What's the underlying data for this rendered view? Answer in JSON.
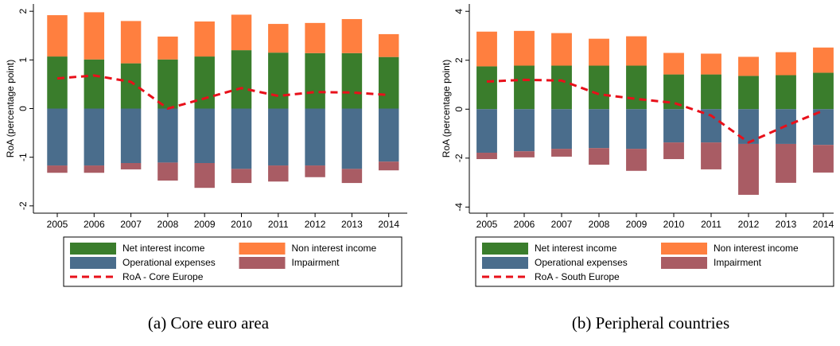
{
  "chart_data": [
    {
      "type": "bar",
      "stacked": true,
      "caption": "(a) Core euro area",
      "y_label": "RoA (percentage point)",
      "categories": [
        "2005",
        "2006",
        "2007",
        "2008",
        "2009",
        "2010",
        "2011",
        "2012",
        "2013",
        "2014"
      ],
      "ylim": [
        -2.15,
        2.15
      ],
      "yticks": [
        -2,
        -1,
        0,
        1,
        2
      ],
      "series": [
        {
          "name": "Net interest income",
          "color": "#3a7d2c",
          "values": [
            1.07,
            1.01,
            0.93,
            1.01,
            1.07,
            1.2,
            1.15,
            1.14,
            1.14,
            1.06
          ]
        },
        {
          "name": "Non interest income",
          "color": "#ff7f3f",
          "values": [
            0.85,
            0.97,
            0.87,
            0.47,
            0.72,
            0.73,
            0.59,
            0.62,
            0.7,
            0.47
          ]
        },
        {
          "name": "Operational expenses",
          "color": "#4a6d8c",
          "values": [
            -1.17,
            -1.17,
            -1.12,
            -1.11,
            -1.12,
            -1.24,
            -1.17,
            -1.17,
            -1.24,
            -1.09
          ]
        },
        {
          "name": "Impairment",
          "color": "#a95c64",
          "values": [
            -0.15,
            -0.15,
            -0.13,
            -0.37,
            -0.51,
            -0.29,
            -0.33,
            -0.24,
            -0.29,
            -0.18
          ]
        },
        {
          "name": "RoA - Core Europe",
          "type": "line",
          "color": "#e8101a",
          "values": [
            0.62,
            0.68,
            0.55,
            0.0,
            0.21,
            0.42,
            0.26,
            0.34,
            0.33,
            0.28
          ]
        }
      ]
    },
    {
      "type": "bar",
      "stacked": true,
      "caption": "(b) Peripheral countries",
      "y_label": "RoA (percentage point)",
      "categories": [
        "2005",
        "2006",
        "2007",
        "2008",
        "2009",
        "2010",
        "2011",
        "2012",
        "2013",
        "2014"
      ],
      "ylim": [
        -4.25,
        4.3
      ],
      "yticks": [
        -4,
        -2,
        0,
        2,
        4
      ],
      "series": [
        {
          "name": "Net interest income",
          "color": "#3a7d2c",
          "values": [
            1.75,
            1.78,
            1.78,
            1.78,
            1.78,
            1.42,
            1.42,
            1.36,
            1.39,
            1.49
          ]
        },
        {
          "name": "Non interest income",
          "color": "#ff7f3f",
          "values": [
            1.42,
            1.42,
            1.33,
            1.1,
            1.2,
            0.88,
            0.85,
            0.78,
            0.94,
            1.03
          ]
        },
        {
          "name": "Operational expenses",
          "color": "#4a6d8c",
          "values": [
            -1.78,
            -1.72,
            -1.62,
            -1.59,
            -1.62,
            -1.36,
            -1.36,
            -1.42,
            -1.42,
            -1.46
          ]
        },
        {
          "name": "Impairment",
          "color": "#a95c64",
          "values": [
            -0.26,
            -0.25,
            -0.32,
            -0.68,
            -0.9,
            -0.68,
            -1.1,
            -2.08,
            -1.59,
            -1.13
          ]
        },
        {
          "name": "RoA - South Europe",
          "type": "line",
          "color": "#e8101a",
          "values": [
            1.13,
            1.2,
            1.17,
            0.61,
            0.42,
            0.26,
            -0.26,
            -1.36,
            -0.68,
            -0.06
          ]
        }
      ]
    }
  ]
}
